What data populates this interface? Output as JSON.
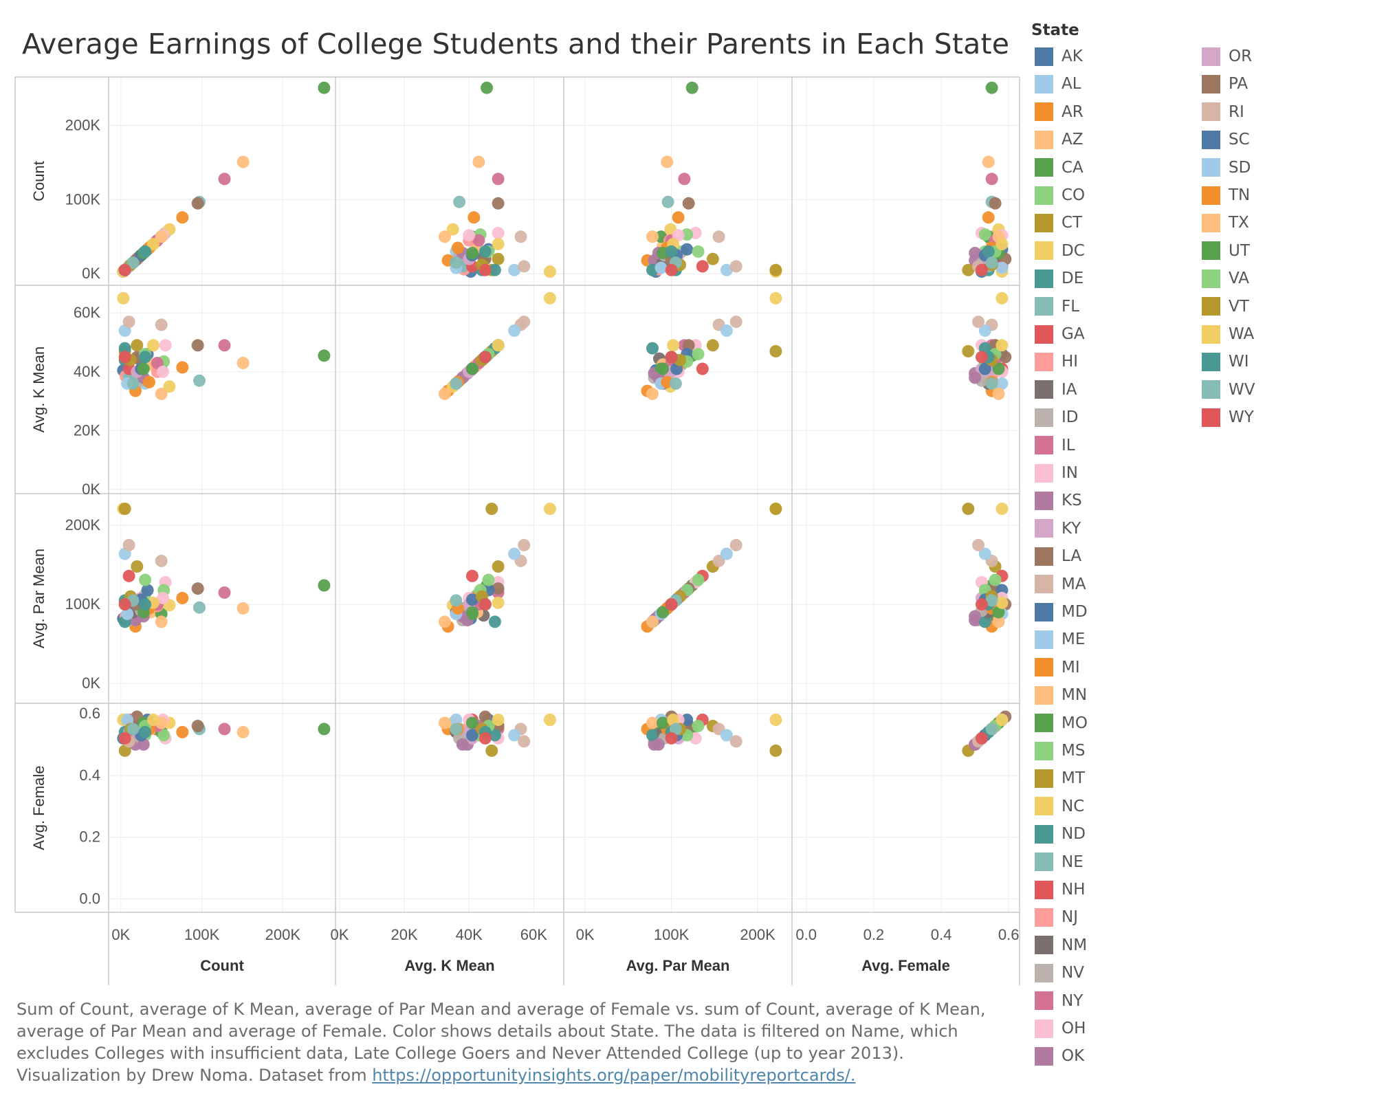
{
  "title": "Average Earnings of College Students and their Parents in Each State",
  "caption": {
    "text": "Sum of Count, average of K Mean, average of Par Mean and average of Female vs. sum of Count, average of K Mean, average of Par Mean and average of Female.  Color shows details about State. The data is filtered on Name, which excludes Colleges with insufficient data, Late College Goers and Never Attended College (up to year 2013). Visualization by Drew Noma. Dataset from",
    "link": "https://opportunityinsights.org/paper/mobilityreportcards/."
  },
  "legend": {
    "title": "State",
    "placement": "right"
  },
  "chart_data": {
    "type": "scatter",
    "subtype": "scatter-plot-matrix",
    "variables": [
      "Count",
      "Avg. K Mean",
      "Avg. Par Mean",
      "Avg. Female"
    ],
    "axes": {
      "Count": {
        "range": [
          -10000,
          260000
        ],
        "ticks": [
          0,
          100000,
          200000
        ],
        "tick_labels": [
          "0K",
          "100K",
          "200K"
        ]
      },
      "Avg. K Mean": {
        "range": [
          0,
          68000
        ],
        "ticks": [
          0,
          20000,
          40000,
          60000
        ],
        "tick_labels": [
          "0K",
          "20K",
          "40K",
          "60K"
        ]
      },
      "Avg. Par Mean": {
        "range": [
          -20000,
          235000
        ],
        "ticks": [
          0,
          100000,
          200000
        ],
        "tick_labels": [
          "0K",
          "100K",
          "200K"
        ]
      },
      "Avg. Female": {
        "range": [
          -0.03,
          0.62
        ],
        "ticks": [
          0.0,
          0.2,
          0.4,
          0.6
        ],
        "tick_labels": [
          "0.0",
          "0.2",
          "0.4",
          "0.6"
        ]
      }
    },
    "axis_titles_y": [
      "Count",
      "Avg. K Mean",
      "Avg. Par Mean",
      "Avg. Female"
    ],
    "axis_titles_x": [
      "Count",
      "Avg. K Mean",
      "Avg. Par Mean",
      "Avg. Female"
    ],
    "x_tick_labels": [
      [
        "0K",
        "100K",
        "200K"
      ],
      [
        "0K",
        "20K",
        "40K",
        "60K"
      ],
      [
        "0K",
        "100K",
        "200K"
      ],
      [
        "0.0",
        "0.2",
        "0.4",
        "0.6"
      ]
    ],
    "y_tick_labels": [
      [
        "0K",
        "100K",
        "200K"
      ],
      [
        "0K",
        "20K",
        "40K",
        "60K"
      ],
      [
        "0K",
        "100K",
        "200K"
      ],
      [
        "0.0",
        "0.2",
        "0.4",
        "0.6"
      ]
    ],
    "grid": true,
    "fields": [
      "state",
      "count",
      "k_mean",
      "par_mean",
      "female"
    ],
    "points": [
      [
        "AK",
        3000,
        40500,
        82000,
        0.52
      ],
      [
        "AL",
        30000,
        36000,
        88000,
        0.56
      ],
      [
        "AR",
        18000,
        33500,
        72000,
        0.55
      ],
      [
        "AZ",
        151000,
        43000,
        95000,
        0.54
      ],
      [
        "CA",
        251000,
        45500,
        124000,
        0.55
      ],
      [
        "CO",
        30000,
        42500,
        112000,
        0.53
      ],
      [
        "CT",
        20000,
        49000,
        148000,
        0.56
      ],
      [
        "DC",
        3000,
        65000,
        221000,
        0.58
      ],
      [
        "DE",
        5000,
        44000,
        105000,
        0.54
      ],
      [
        "FL",
        97000,
        37000,
        96000,
        0.55
      ],
      [
        "GA",
        44000,
        42000,
        95000,
        0.55
      ],
      [
        "HI",
        6000,
        38500,
        85000,
        0.53
      ],
      [
        "IA",
        22000,
        44500,
        86000,
        0.56
      ],
      [
        "ID",
        10000,
        38000,
        80000,
        0.51
      ],
      [
        "IL",
        128000,
        49000,
        115000,
        0.55
      ],
      [
        "IN",
        55000,
        49000,
        128000,
        0.52
      ],
      [
        "KS",
        18000,
        39500,
        80000,
        0.5
      ],
      [
        "KY",
        25000,
        41000,
        108000,
        0.52
      ],
      [
        "LA",
        95000,
        49000,
        120000,
        0.56
      ],
      [
        "MA",
        50000,
        56000,
        155000,
        0.55
      ],
      [
        "MD",
        33000,
        46000,
        118000,
        0.58
      ],
      [
        "ME",
        5000,
        54000,
        164000,
        0.53
      ],
      [
        "MI",
        76000,
        41500,
        108000,
        0.54
      ],
      [
        "MN",
        37000,
        42500,
        90000,
        0.55
      ],
      [
        "MO",
        50000,
        41000,
        88000,
        0.54
      ],
      [
        "MS",
        53000,
        43500,
        118000,
        0.53
      ],
      [
        "MT",
        5000,
        47000,
        221000,
        0.48
      ],
      [
        "NC",
        60000,
        35000,
        99000,
        0.57
      ],
      [
        "ND",
        5000,
        48000,
        78000,
        0.53
      ],
      [
        "NE",
        10000,
        38000,
        95000,
        0.54
      ],
      [
        "NH",
        10000,
        41000,
        136000,
        0.58
      ],
      [
        "NJ",
        45000,
        40000,
        98000,
        0.56
      ],
      [
        "NM",
        15000,
        36000,
        90000,
        0.54
      ],
      [
        "NV",
        25000,
        37000,
        92000,
        0.52
      ],
      [
        "NY",
        45000,
        43000,
        100000,
        0.56
      ],
      [
        "OH",
        52000,
        40000,
        108000,
        0.58
      ],
      [
        "OK",
        28000,
        38000,
        85000,
        0.5
      ],
      [
        "OR",
        20000,
        40000,
        100000,
        0.54
      ],
      [
        "PA",
        20000,
        45000,
        100000,
        0.59
      ],
      [
        "RI",
        10000,
        57000,
        175000,
        0.51
      ],
      [
        "SC",
        25000,
        41000,
        106000,
        0.53
      ],
      [
        "SD",
        8000,
        36000,
        88000,
        0.58
      ],
      [
        "TN",
        35000,
        36500,
        95000,
        0.55
      ],
      [
        "TX",
        50000,
        32500,
        78000,
        0.57
      ],
      [
        "UT",
        28000,
        41000,
        90000,
        0.57
      ],
      [
        "VA",
        30000,
        46000,
        131000,
        0.56
      ],
      [
        "VT",
        12000,
        44000,
        110000,
        0.55
      ],
      [
        "WA",
        40000,
        49000,
        102000,
        0.58
      ],
      [
        "WI",
        30000,
        45000,
        100000,
        0.54
      ],
      [
        "WV",
        15000,
        36000,
        105000,
        0.55
      ],
      [
        "WY",
        5000,
        45000,
        100000,
        0.52
      ]
    ],
    "legend_entries": [
      {
        "state": "AK",
        "color": "#4e79a7"
      },
      {
        "state": "AL",
        "color": "#a0cbe8"
      },
      {
        "state": "AR",
        "color": "#f28e2b"
      },
      {
        "state": "AZ",
        "color": "#ffbe7d"
      },
      {
        "state": "CA",
        "color": "#59a14f"
      },
      {
        "state": "CO",
        "color": "#8cd17d"
      },
      {
        "state": "CT",
        "color": "#b6992d"
      },
      {
        "state": "DC",
        "color": "#f1ce63"
      },
      {
        "state": "DE",
        "color": "#499894"
      },
      {
        "state": "FL",
        "color": "#86bcb6"
      },
      {
        "state": "GA",
        "color": "#e15759"
      },
      {
        "state": "HI",
        "color": "#ff9d9a"
      },
      {
        "state": "IA",
        "color": "#79706e"
      },
      {
        "state": "ID",
        "color": "#bab0ac"
      },
      {
        "state": "IL",
        "color": "#d37295"
      },
      {
        "state": "IN",
        "color": "#fabfd2"
      },
      {
        "state": "KS",
        "color": "#b07aa1"
      },
      {
        "state": "KY",
        "color": "#d4a6c8"
      },
      {
        "state": "LA",
        "color": "#9d7660"
      },
      {
        "state": "MA",
        "color": "#d7b5a6"
      },
      {
        "state": "MD",
        "color": "#4e79a7"
      },
      {
        "state": "ME",
        "color": "#a0cbe8"
      },
      {
        "state": "MI",
        "color": "#f28e2b"
      },
      {
        "state": "MN",
        "color": "#ffbe7d"
      },
      {
        "state": "MO",
        "color": "#59a14f"
      },
      {
        "state": "MS",
        "color": "#8cd17d"
      },
      {
        "state": "MT",
        "color": "#b6992d"
      },
      {
        "state": "NC",
        "color": "#f1ce63"
      },
      {
        "state": "ND",
        "color": "#499894"
      },
      {
        "state": "NE",
        "color": "#86bcb6"
      },
      {
        "state": "NH",
        "color": "#e15759"
      },
      {
        "state": "NJ",
        "color": "#ff9d9a"
      },
      {
        "state": "NM",
        "color": "#79706e"
      },
      {
        "state": "NV",
        "color": "#bab0ac"
      },
      {
        "state": "NY",
        "color": "#d37295"
      },
      {
        "state": "OH",
        "color": "#fabfd2"
      },
      {
        "state": "OK",
        "color": "#b07aa1"
      },
      {
        "state": "OR",
        "color": "#d4a6c8"
      },
      {
        "state": "PA",
        "color": "#9d7660"
      },
      {
        "state": "RI",
        "color": "#d7b5a6"
      },
      {
        "state": "SC",
        "color": "#4e79a7"
      },
      {
        "state": "SD",
        "color": "#a0cbe8"
      },
      {
        "state": "TN",
        "color": "#f28e2b"
      },
      {
        "state": "TX",
        "color": "#ffbe7d"
      },
      {
        "state": "UT",
        "color": "#59a14f"
      },
      {
        "state": "VA",
        "color": "#8cd17d"
      },
      {
        "state": "VT",
        "color": "#b6992d"
      },
      {
        "state": "WA",
        "color": "#f1ce63"
      },
      {
        "state": "WI",
        "color": "#499894"
      },
      {
        "state": "WV",
        "color": "#86bcb6"
      },
      {
        "state": "WY",
        "color": "#e15759"
      }
    ]
  }
}
